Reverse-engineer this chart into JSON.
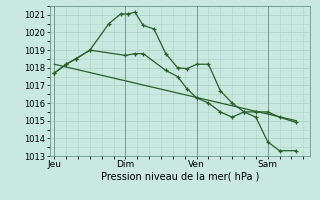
{
  "bg_color": "#c8e8e0",
  "grid_color": "#b0d4c8",
  "line_color": "#2a5e2a",
  "xlabel": "Pression niveau de la mer( hPa )",
  "ylim": [
    1013,
    1021.5
  ],
  "yticks": [
    1013,
    1014,
    1015,
    1016,
    1017,
    1018,
    1019,
    1020,
    1021
  ],
  "xtick_labels": [
    "Jeu",
    "Dim",
    "Ven",
    "Sam"
  ],
  "xtick_positions": [
    0,
    3,
    6,
    9
  ],
  "xlim": [
    -0.2,
    10.8
  ],
  "vline_positions": [
    0,
    3,
    6,
    9
  ],
  "line1_x": [
    0.0,
    0.5,
    0.9,
    1.5,
    2.3,
    2.8,
    3.1,
    3.4,
    3.75,
    4.2,
    4.7,
    5.2,
    5.6,
    6.0,
    6.5,
    7.0,
    7.5,
    8.0,
    8.5,
    9.0,
    9.5,
    10.2
  ],
  "line1_y": [
    1017.7,
    1018.2,
    1018.5,
    1019.0,
    1020.5,
    1021.05,
    1021.05,
    1021.15,
    1020.4,
    1020.2,
    1018.8,
    1018.0,
    1017.95,
    1018.2,
    1018.2,
    1016.7,
    1016.0,
    1015.5,
    1015.2,
    1013.8,
    1013.3,
    1013.3
  ],
  "line2_x": [
    0.0,
    0.5,
    0.9,
    1.5,
    3.0,
    3.4,
    3.75,
    4.7,
    5.2,
    5.6,
    6.0,
    6.5,
    7.0,
    7.5,
    8.0,
    8.5,
    9.0,
    9.5,
    10.2
  ],
  "line2_y": [
    1017.7,
    1018.2,
    1018.5,
    1019.0,
    1018.7,
    1018.8,
    1018.8,
    1017.85,
    1017.5,
    1016.8,
    1016.3,
    1016.0,
    1015.5,
    1015.2,
    1015.5,
    1015.5,
    1015.5,
    1015.2,
    1014.9
  ],
  "trend_x": [
    0.0,
    10.2
  ],
  "trend_y": [
    1018.2,
    1015.0
  ]
}
